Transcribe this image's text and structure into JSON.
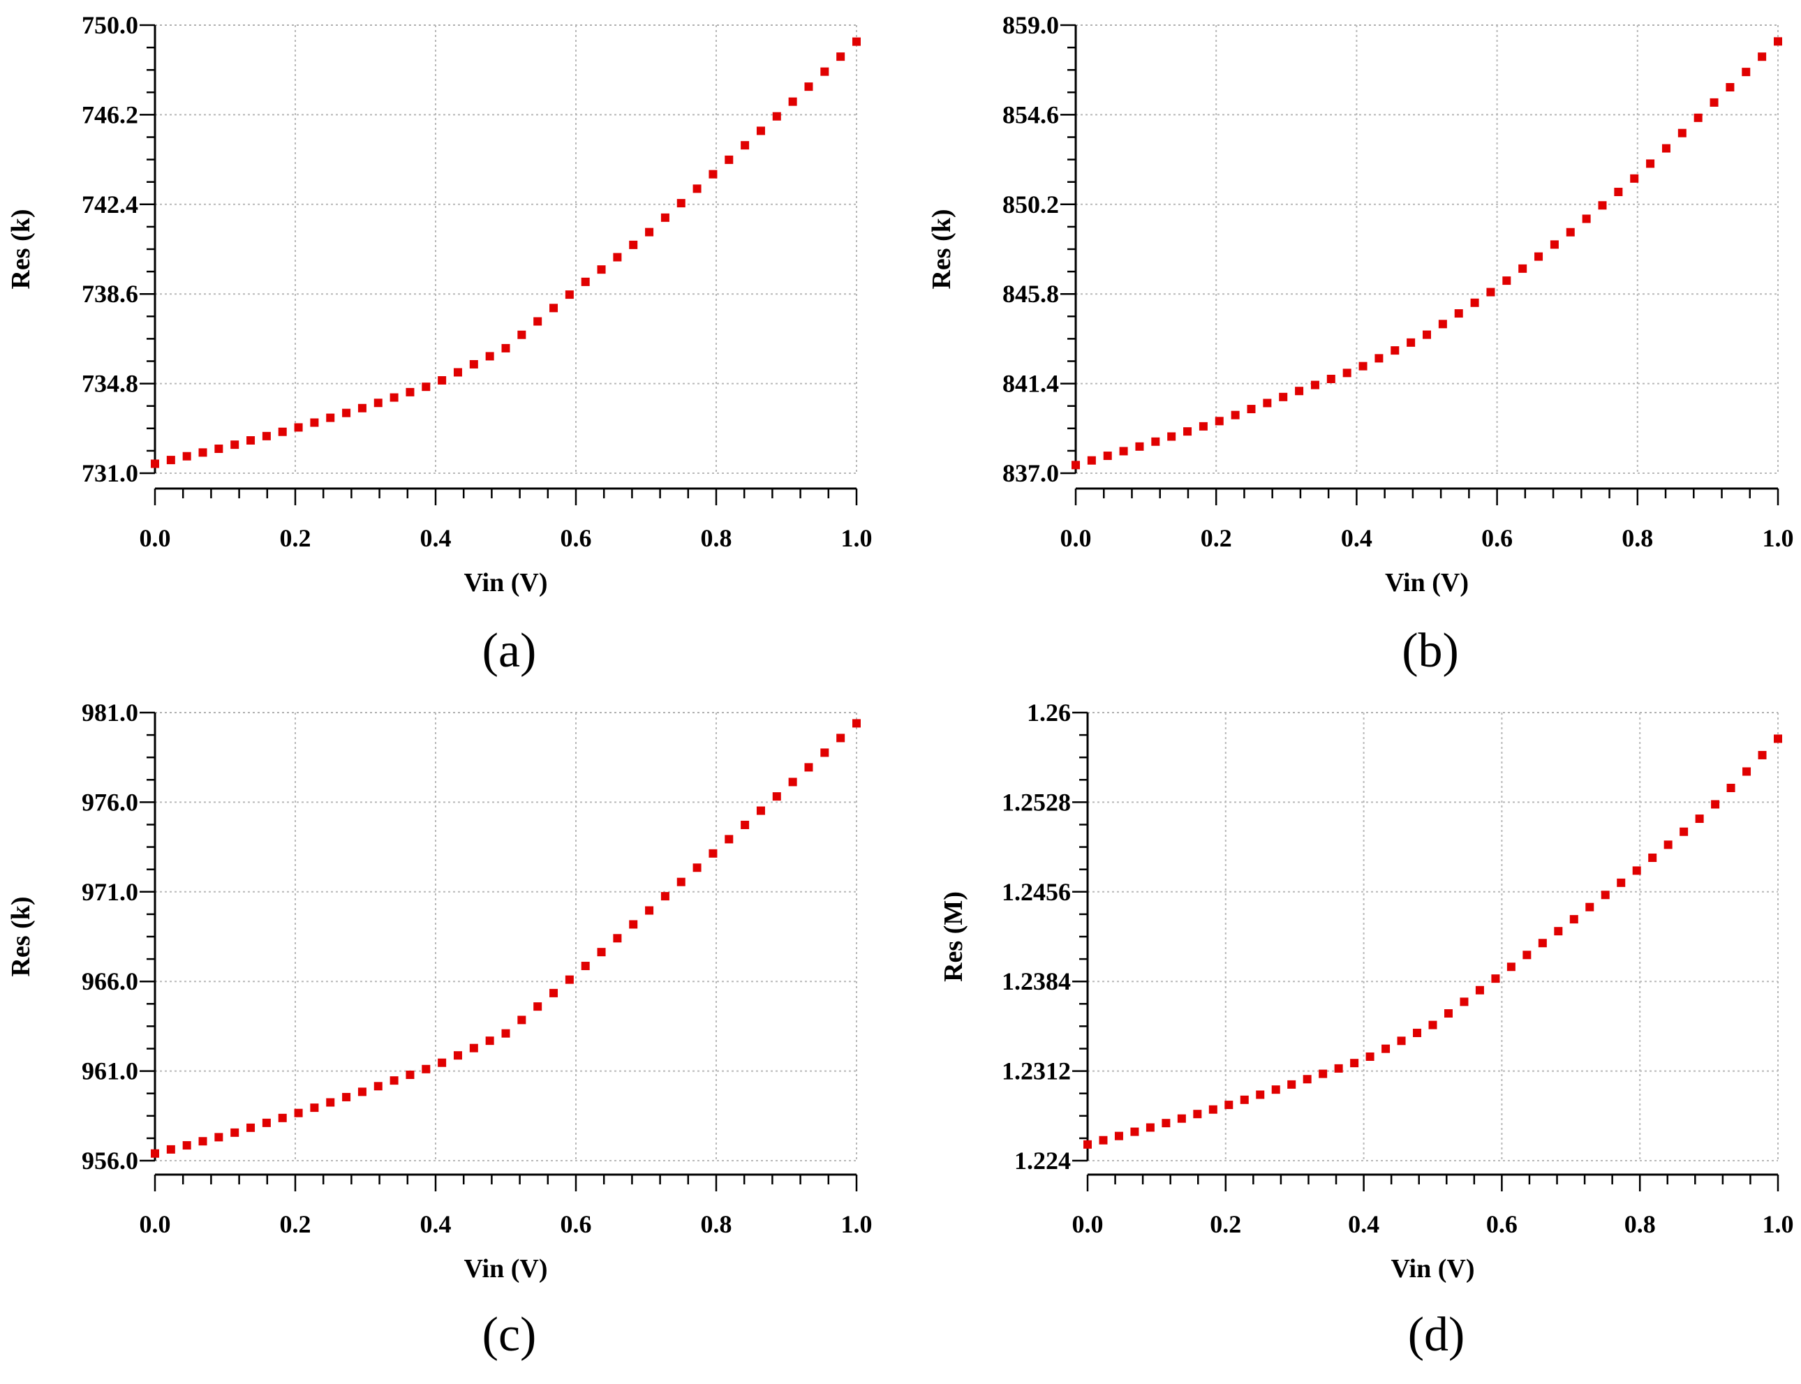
{
  "chart_data": [
    {
      "panel": "(a)",
      "type": "scatter",
      "xlabel": "Vin (V)",
      "ylabel": "Res (k)",
      "xlim": [
        0.0,
        1.0
      ],
      "ylim": [
        731.0,
        750.0
      ],
      "xticks": [
        "0.0",
        "0.2",
        "0.4",
        "0.6",
        "0.8",
        "1.0"
      ],
      "yticks": [
        "731.0",
        "734.8",
        "738.6",
        "742.4",
        "746.2",
        "750.0"
      ],
      "grid": true,
      "marker_color": "#e00000",
      "series": [
        {
          "name": "Res",
          "x": [
            0.0,
            0.1,
            0.2,
            0.3,
            0.4,
            0.5,
            0.6,
            0.7,
            0.8,
            0.9,
            1.0
          ],
          "y": [
            731.4,
            732.1,
            732.9,
            733.8,
            734.8,
            736.3,
            738.8,
            741.1,
            743.8,
            746.5,
            749.3
          ]
        }
      ]
    },
    {
      "panel": "(b)",
      "type": "scatter",
      "xlabel": "Vin (V)",
      "ylabel": "Res (k)",
      "xlim": [
        0.0,
        1.0
      ],
      "ylim": [
        837.0,
        859.0
      ],
      "xticks": [
        "0.0",
        "0.2",
        "0.4",
        "0.6",
        "0.8",
        "1.0"
      ],
      "yticks": [
        "837.0",
        "841.4",
        "845.8",
        "850.2",
        "854.6",
        "859.0"
      ],
      "grid": true,
      "marker_color": "#e00000",
      "series": [
        {
          "name": "Res",
          "x": [
            0.0,
            0.1,
            0.2,
            0.3,
            0.4,
            0.5,
            0.6,
            0.7,
            0.8,
            0.9,
            1.0
          ],
          "y": [
            837.4,
            838.4,
            839.5,
            840.8,
            842.1,
            843.8,
            846.1,
            848.7,
            851.6,
            854.9,
            858.2
          ]
        }
      ]
    },
    {
      "panel": "(c)",
      "type": "scatter",
      "xlabel": "Vin (V)",
      "ylabel": "Res (k)",
      "xlim": [
        0.0,
        1.0
      ],
      "ylim": [
        956.0,
        981.0
      ],
      "xticks": [
        "0.0",
        "0.2",
        "0.4",
        "0.6",
        "0.8",
        "1.0"
      ],
      "yticks": [
        "956.0",
        "961.0",
        "966.0",
        "971.0",
        "976.0",
        "981.0"
      ],
      "grid": true,
      "marker_color": "#e00000",
      "series": [
        {
          "name": "Res",
          "x": [
            0.0,
            0.1,
            0.2,
            0.3,
            0.4,
            0.5,
            0.6,
            0.7,
            0.8,
            0.9,
            1.0
          ],
          "y": [
            956.4,
            957.4,
            958.6,
            959.9,
            961.3,
            963.1,
            966.4,
            969.8,
            973.3,
            976.8,
            980.4
          ]
        }
      ]
    },
    {
      "panel": "(d)",
      "type": "scatter",
      "xlabel": "Vin (V)",
      "ylabel": "Res (M)",
      "xlim": [
        0.0,
        1.0
      ],
      "ylim": [
        1.224,
        1.26
      ],
      "xticks": [
        "0.0",
        "0.2",
        "0.4",
        "0.6",
        "0.8",
        "1.0"
      ],
      "yticks": [
        "1.224",
        "1.2312",
        "1.2384",
        "1.2456",
        "1.2528",
        "1.26"
      ],
      "grid": true,
      "marker_color": "#e00000",
      "series": [
        {
          "name": "Res",
          "x": [
            0.0,
            0.1,
            0.2,
            0.3,
            0.4,
            0.5,
            0.6,
            0.7,
            0.8,
            0.9,
            1.0
          ],
          "y": [
            1.2253,
            1.2268,
            1.2284,
            1.2302,
            1.2321,
            1.2349,
            1.239,
            1.2432,
            1.2475,
            1.2521,
            1.2579
          ]
        }
      ]
    }
  ]
}
